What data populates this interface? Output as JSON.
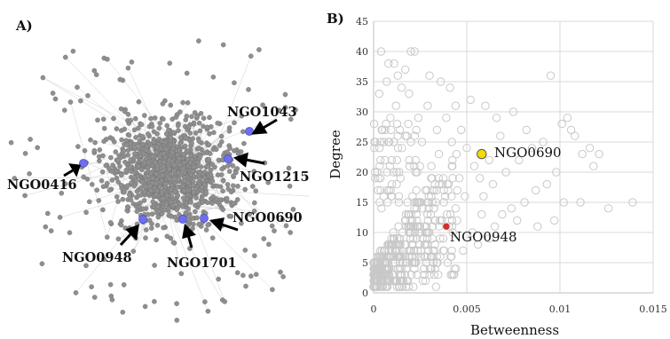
{
  "figure": {
    "panel_a_label": "A)",
    "panel_b_label": "B)"
  },
  "network": {
    "node_color": "#8f8f8f",
    "edge_color": "#cfcfcf",
    "highlight_color": "#6e6ef0",
    "highlighted_nodes": [
      {
        "label": "NGO1043"
      },
      {
        "label": "NGO1215"
      },
      {
        "label": "NGO0416"
      },
      {
        "label": "NGO0690"
      },
      {
        "label": "NGO0948"
      },
      {
        "label": "NGO1701"
      }
    ]
  },
  "chart_data": {
    "type": "scatter",
    "xlabel": "Betweenness",
    "ylabel": "Degree",
    "xlim": [
      0,
      0.015
    ],
    "ylim": [
      0,
      45
    ],
    "x_ticks": [
      "0",
      "0.005",
      "0.01",
      "0.015"
    ],
    "y_ticks": [
      "0",
      "5",
      "10",
      "15",
      "20",
      "25",
      "30",
      "35",
      "40",
      "45"
    ],
    "grid": true,
    "marker_color": "#c8c8c8",
    "points": [
      [
        0.0004,
        40
      ],
      [
        0.0008,
        38
      ],
      [
        0.0011,
        38
      ],
      [
        0.0013,
        36
      ],
      [
        0.0017,
        37
      ],
      [
        0.002,
        40
      ],
      [
        0.0022,
        40
      ],
      [
        0.0015,
        34
      ],
      [
        0.0019,
        33
      ],
      [
        0.003,
        36
      ],
      [
        0.0036,
        35
      ],
      [
        0.0041,
        34
      ],
      [
        0.0044,
        31
      ],
      [
        0.0052,
        32
      ],
      [
        0.006,
        31
      ],
      [
        0.0066,
        29
      ],
      [
        0.0075,
        30
      ],
      [
        0.0082,
        27
      ],
      [
        0.0095,
        36
      ],
      [
        0.0101,
        28
      ],
      [
        0.0104,
        29
      ],
      [
        0.0106,
        27
      ],
      [
        0.0108,
        26
      ],
      [
        0.0112,
        23
      ],
      [
        0.0116,
        24
      ],
      [
        0.0121,
        23
      ],
      [
        0.0118,
        21
      ],
      [
        0.0098,
        20
      ],
      [
        0.0093,
        18
      ],
      [
        0.0087,
        17
      ],
      [
        0.0081,
        15
      ],
      [
        0.0074,
        14
      ],
      [
        0.0069,
        13
      ],
      [
        0.0102,
        15
      ],
      [
        0.0111,
        15
      ],
      [
        0.0126,
        14
      ],
      [
        0.0139,
        15
      ],
      [
        0.0078,
        22
      ],
      [
        0.0071,
        20
      ],
      [
        0.0064,
        18
      ],
      [
        0.0059,
        16
      ],
      [
        0.0054,
        21
      ],
      [
        0.005,
        24
      ],
      [
        0.0047,
        27
      ],
      [
        0.0039,
        29
      ],
      [
        0.0034,
        27
      ],
      [
        0.0029,
        31
      ],
      [
        0.0024,
        29
      ],
      [
        0.0026,
        25
      ],
      [
        0.0035,
        23
      ],
      [
        0.0042,
        25
      ],
      [
        0.0012,
        31
      ],
      [
        0.0007,
        35
      ],
      [
        0.0003,
        33
      ],
      [
        0.0009,
        29
      ],
      [
        0.0046,
        19
      ],
      [
        0.0062,
        22
      ],
      [
        0.0085,
        24
      ],
      [
        0.0091,
        25
      ],
      [
        0.0068,
        26
      ],
      [
        0.0057,
        19
      ],
      [
        0.0049,
        16
      ],
      [
        0.0044,
        14
      ],
      [
        0.0037,
        18
      ],
      [
        0.0031,
        21
      ],
      [
        0.0097,
        12
      ],
      [
        0.0088,
        11
      ],
      [
        0.0077,
        12
      ],
      [
        0.0065,
        11
      ],
      [
        0.0058,
        13
      ],
      [
        0.0053,
        10
      ],
      [
        0.0056,
        8
      ],
      [
        0.0062,
        9
      ],
      [
        0.0048,
        7
      ]
    ],
    "highlighted": [
      {
        "label": "NGO0690",
        "x": 0.0058,
        "y": 23,
        "color": "#f5d90a"
      },
      {
        "label": "NGO0948",
        "x": 0.0039,
        "y": 11,
        "color": "#d0302a"
      }
    ]
  }
}
